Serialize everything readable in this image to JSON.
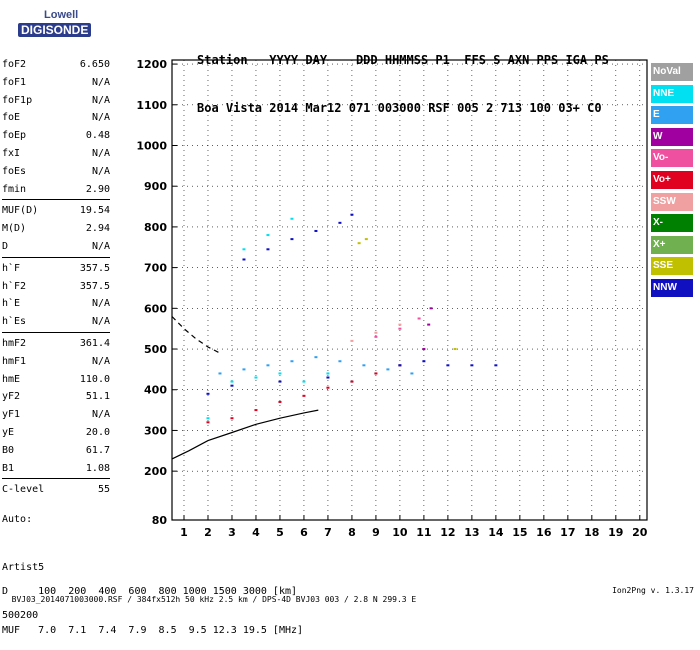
{
  "logo": {
    "brand": "Lowell",
    "product": "DIGISONDE"
  },
  "header": {
    "line1": "Station   YYYY DAY    DDD HHMMSS P1  FFS S AXN PPS IGA PS",
    "line2": "Boa Vista 2014 Mar12 071 003000 RSF 005 2 713 100 03+ C0"
  },
  "params": [
    {
      "name": "foF2",
      "value": "6.650"
    },
    {
      "name": "foF1",
      "value": "N/A"
    },
    {
      "name": "foF1p",
      "value": "N/A"
    },
    {
      "name": "foE",
      "value": "N/A"
    },
    {
      "name": "foEp",
      "value": "0.48"
    },
    {
      "name": "fxI",
      "value": "N/A"
    },
    {
      "name": "foEs",
      "value": "N/A"
    },
    {
      "name": "fmin",
      "value": "2.90"
    },
    {
      "name": "MUF(D)",
      "value": "19.54",
      "sep": true
    },
    {
      "name": "M(D)",
      "value": "2.94"
    },
    {
      "name": "D",
      "value": "N/A"
    },
    {
      "name": "h`F",
      "value": "357.5",
      "sep": true
    },
    {
      "name": "h`F2",
      "value": "357.5"
    },
    {
      "name": "h`E",
      "value": "N/A"
    },
    {
      "name": "h`Es",
      "value": "N/A"
    },
    {
      "name": "hmF2",
      "value": "361.4",
      "sep": true
    },
    {
      "name": "hmF1",
      "value": "N/A"
    },
    {
      "name": "hmE",
      "value": "110.0"
    },
    {
      "name": "yF2",
      "value": "51.1"
    },
    {
      "name": "yF1",
      "value": "N/A"
    },
    {
      "name": "yE",
      "value": "20.0"
    },
    {
      "name": "B0",
      "value": "61.7"
    },
    {
      "name": "B1",
      "value": "1.08"
    },
    {
      "name": "C-level",
      "value": "55",
      "sep": true
    }
  ],
  "auto": {
    "line1": "Auto:",
    "line2": "Artist5",
    "line3": "500200"
  },
  "dmuf": {
    "d_line": "D     100  200  400  600  800 1000 1500 3000 [km]",
    "muf_line": "MUF   7.0  7.1  7.4  7.9  8.5  9.5 12.3 19.5 [MHz]"
  },
  "footer": {
    "left": "BVJ03_2014071003000.RSF / 384fx512h 50 kHz 2.5 km / DPS-4D BVJ03 003 / 2.8 N 299.3 E",
    "right": "Ion2Png v. 1.3.17"
  },
  "legend": [
    {
      "label": "NoVal",
      "color": "#a0a0a0"
    },
    {
      "label": "NNE",
      "color": "#00e0f0"
    },
    {
      "label": "E",
      "color": "#30a0f0"
    },
    {
      "label": "W",
      "color": "#a000a0"
    },
    {
      "label": "Vo-",
      "color": "#f050a0"
    },
    {
      "label": "Vo+",
      "color": "#e00020"
    },
    {
      "label": "SSW",
      "color": "#f0a0a0"
    },
    {
      "label": "X-",
      "color": "#008000"
    },
    {
      "label": "X+",
      "color": "#70b050"
    },
    {
      "label": "SSE",
      "color": "#c0c000"
    },
    {
      "label": "NNW",
      "color": "#1010c0"
    }
  ],
  "chart_data": {
    "type": "scatter",
    "xlabel": "",
    "ylabel": "",
    "xlim": [
      0.5,
      20.3
    ],
    "ylim": [
      80,
      1210
    ],
    "xticks": [
      "1",
      "2",
      "3",
      "4",
      "5",
      "6",
      "7",
      "8",
      "9",
      "10",
      "11",
      "12",
      "13",
      "14",
      "15",
      "16",
      "17",
      "18",
      "19",
      "20"
    ],
    "yticks": [
      "80",
      "200",
      "300",
      "400",
      "500",
      "600",
      "700",
      "800",
      "900",
      "1000",
      "1100",
      "1200"
    ],
    "grid": true,
    "series": [
      {
        "name": "NNE",
        "color": "#00e0f0",
        "points": [
          [
            2.0,
            330
          ],
          [
            3.0,
            420
          ],
          [
            4.0,
            430
          ],
          [
            5.0,
            440
          ],
          [
            6.0,
            420
          ],
          [
            7.0,
            440
          ],
          [
            8.0,
            420
          ],
          [
            9.0,
            440
          ],
          [
            10.0,
            460
          ],
          [
            3.5,
            745
          ],
          [
            4.5,
            780
          ],
          [
            5.5,
            820
          ]
        ]
      },
      {
        "name": "E",
        "color": "#30a0f0",
        "points": [
          [
            2.5,
            440
          ],
          [
            3.5,
            450
          ],
          [
            4.5,
            460
          ],
          [
            5.5,
            470
          ],
          [
            6.5,
            480
          ],
          [
            7.5,
            470
          ],
          [
            8.5,
            460
          ],
          [
            9.5,
            450
          ],
          [
            10.5,
            440
          ]
        ]
      },
      {
        "name": "W",
        "color": "#a000a0",
        "points": [
          [
            11.0,
            500
          ],
          [
            11.2,
            560
          ],
          [
            11.3,
            600
          ]
        ]
      },
      {
        "name": "Vo-",
        "color": "#f050a0",
        "points": [
          [
            9.0,
            530
          ],
          [
            10.0,
            550
          ],
          [
            10.8,
            575
          ]
        ]
      },
      {
        "name": "Vo+",
        "color": "#e00020",
        "points": [
          [
            2.0,
            320
          ],
          [
            3.0,
            330
          ],
          [
            4.0,
            350
          ],
          [
            5.0,
            370
          ],
          [
            6.0,
            385
          ],
          [
            7.0,
            405
          ],
          [
            8.0,
            420
          ],
          [
            9.0,
            440
          ],
          [
            10.0,
            460
          ]
        ]
      },
      {
        "name": "SSW",
        "color": "#f0a0a0",
        "points": [
          [
            8.0,
            520
          ],
          [
            9.0,
            540
          ],
          [
            10.0,
            560
          ]
        ]
      },
      {
        "name": "SSE",
        "color": "#c0c000",
        "points": [
          [
            8.3,
            760
          ],
          [
            8.6,
            770
          ],
          [
            12.3,
            500
          ]
        ]
      },
      {
        "name": "NNW",
        "color": "#1010c0",
        "points": [
          [
            3.5,
            720
          ],
          [
            4.5,
            745
          ],
          [
            5.5,
            770
          ],
          [
            6.5,
            790
          ],
          [
            7.5,
            810
          ],
          [
            8.0,
            830
          ],
          [
            2.0,
            390
          ],
          [
            3.0,
            410
          ],
          [
            5.0,
            420
          ],
          [
            7.0,
            430
          ],
          [
            10.0,
            460
          ],
          [
            11.0,
            470
          ],
          [
            12.0,
            460
          ],
          [
            13.0,
            460
          ],
          [
            14.0,
            460
          ]
        ]
      }
    ],
    "profile_line": [
      [
        0.5,
        230
      ],
      [
        1.2,
        250
      ],
      [
        2.0,
        275
      ],
      [
        3.0,
        295
      ],
      [
        4.0,
        315
      ],
      [
        5.0,
        330
      ],
      [
        6.0,
        343
      ],
      [
        6.6,
        350
      ]
    ],
    "dashed_line": [
      [
        0.5,
        580
      ],
      [
        1.0,
        550
      ],
      [
        1.5,
        525
      ],
      [
        2.0,
        505
      ],
      [
        2.5,
        490
      ]
    ]
  }
}
